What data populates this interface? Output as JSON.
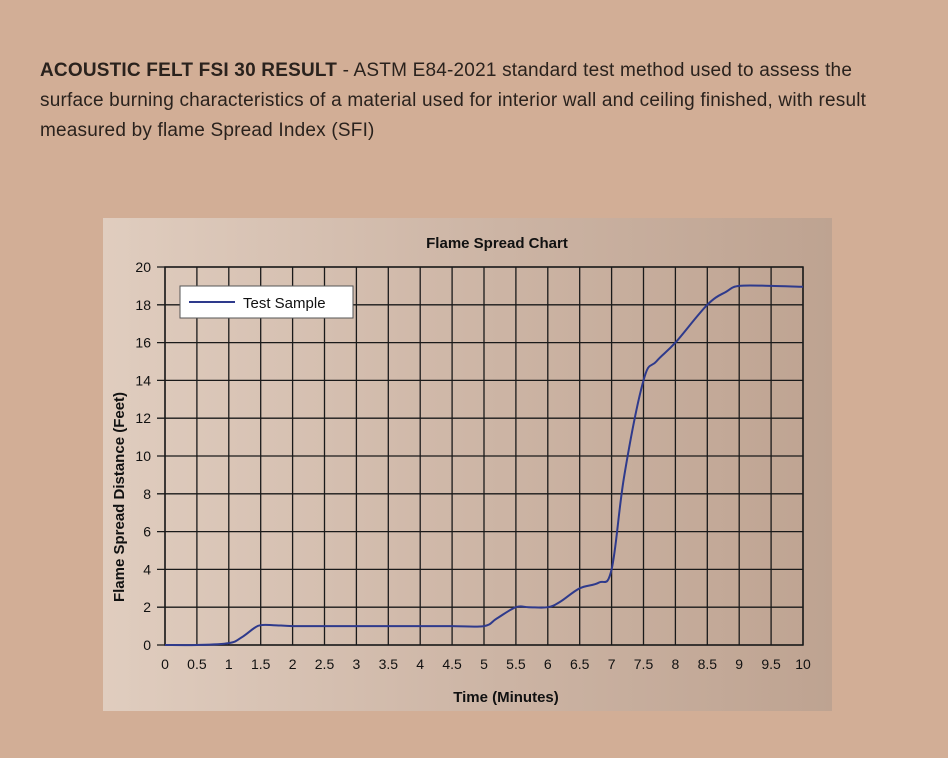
{
  "intro": {
    "heading": "ACOUSTIC FELT FSI 30 RESULT",
    "body": " - ASTM E84-2021 standard test method used to assess the surface burning characteristics of a material used for interior wall and ceiling finished, with result measured by flame Spread Index (SFI)"
  },
  "chart_data": {
    "type": "line",
    "title": "Flame Spread Chart",
    "xlabel": "Time (Minutes)",
    "ylabel": "Flame Spread Distance (Feet)",
    "xlim": [
      0,
      10
    ],
    "ylim": [
      0,
      20
    ],
    "x_ticks": [
      "0",
      "0.5",
      "1",
      "1.5",
      "2",
      "2.5",
      "3",
      "3.5",
      "4",
      "4.5",
      "5",
      "5.5",
      "6",
      "6.5",
      "7",
      "7.5",
      "8",
      "8.5",
      "9",
      "9.5",
      "10"
    ],
    "y_ticks": [
      "0",
      "2",
      "4",
      "6",
      "8",
      "10",
      "12",
      "14",
      "16",
      "18",
      "20"
    ],
    "grid": true,
    "legend_position": "top-left",
    "series": [
      {
        "name": "Test Sample",
        "color": "#2e3a8c",
        "x": [
          0,
          0.5,
          1.0,
          1.2,
          1.4,
          1.5,
          1.7,
          2.0,
          2.5,
          3.0,
          3.5,
          4.0,
          4.5,
          5.0,
          5.2,
          5.5,
          5.7,
          6.0,
          6.2,
          6.5,
          6.8,
          7.0,
          7.2,
          7.5,
          7.7,
          8.0,
          8.5,
          8.8,
          9.0,
          9.5,
          10.0
        ],
        "y": [
          0,
          0,
          0.1,
          0.4,
          0.9,
          1.05,
          1.05,
          1.0,
          1.0,
          1.0,
          1.0,
          1.0,
          1.0,
          1.0,
          1.4,
          2.0,
          2.0,
          2.0,
          2.3,
          3.0,
          3.3,
          4.0,
          9.0,
          14.0,
          15.0,
          16.0,
          18.0,
          18.7,
          19.0,
          19.0,
          18.95
        ]
      }
    ]
  }
}
